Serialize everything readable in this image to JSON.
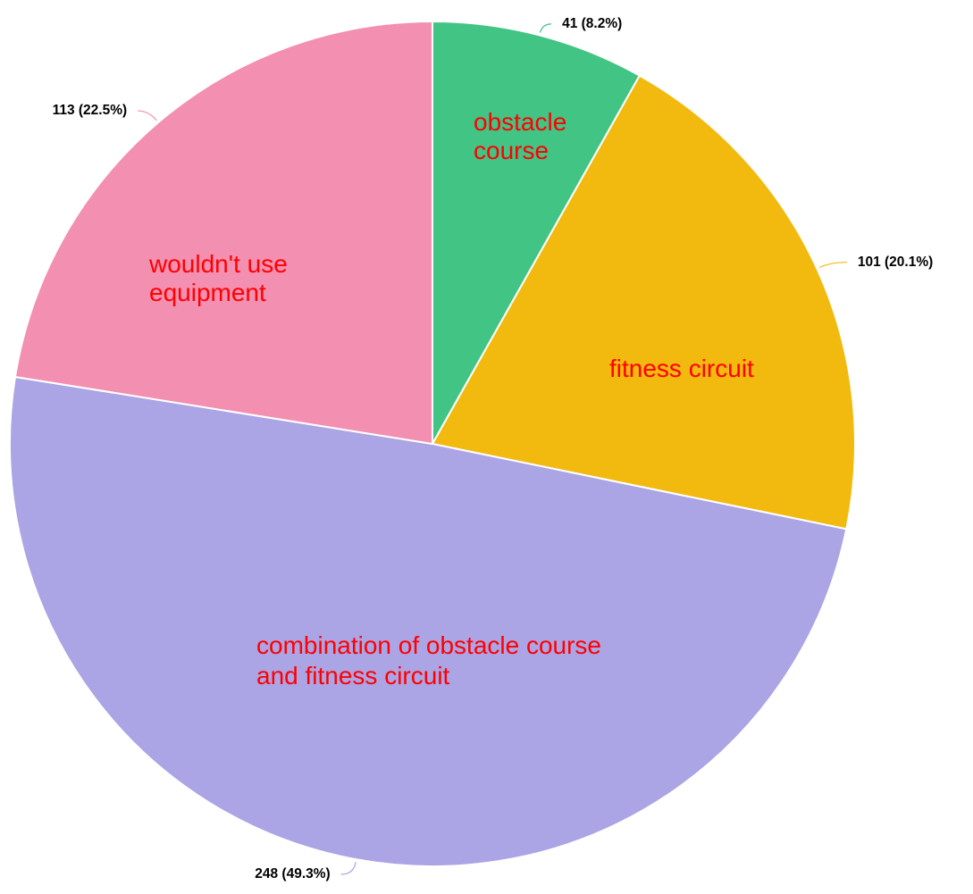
{
  "chart_data": {
    "type": "pie",
    "title": "",
    "start_angle_deg": 0,
    "direction": "clockwise",
    "label_color": "#ff0000",
    "slices": [
      {
        "label_lines": [
          "obstacle",
          "course"
        ],
        "value": 41,
        "percent": "8.2%",
        "value_label": "41 (8.2%)",
        "color": "#41c484"
      },
      {
        "label_lines": [
          "fitness circuit"
        ],
        "value": 101,
        "percent": "20.1%",
        "value_label": "101 (20.1%)",
        "color": "#f2b90f"
      },
      {
        "label_lines": [
          "combination of obstacle course",
          "and fitness circuit"
        ],
        "value": 248,
        "percent": "49.3%",
        "value_label": "248 (49.3%)",
        "color": "#aba4e5"
      },
      {
        "label_lines": [
          "wouldn't use",
          "equipment"
        ],
        "value": 113,
        "percent": "22.5%",
        "value_label": "113 (22.5%)",
        "color": "#f38fb1"
      }
    ]
  }
}
